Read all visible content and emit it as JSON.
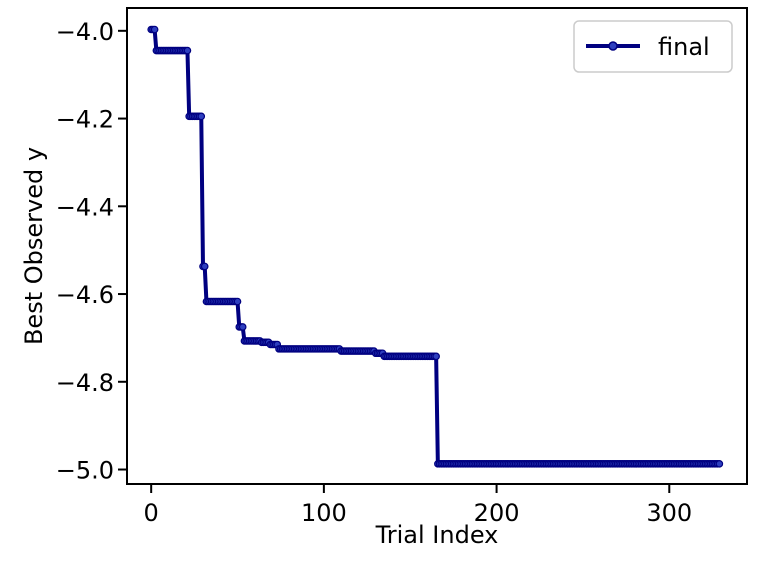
{
  "chart_data": {
    "type": "line",
    "xlabel": "Trial Index",
    "ylabel": "Best Observed y",
    "xlim": [
      -14,
      345
    ],
    "ylim": [
      -5.033,
      -3.948
    ],
    "xticks": [
      0,
      100,
      200,
      300
    ],
    "xtick_labels": [
      "0",
      "100",
      "200",
      "300"
    ],
    "yticks": [
      -4.0,
      -4.2,
      -4.4,
      -4.6,
      -4.8,
      -5.0
    ],
    "ytick_labels": [
      "−4.0",
      "−4.2",
      "−4.4",
      "−4.6",
      "−4.8",
      "−5.0"
    ],
    "legend_position": "top-right",
    "color": "#000080",
    "series": [
      {
        "name": "final",
        "steps": [
          [
            0,
            -3.997
          ],
          [
            3,
            -4.045
          ],
          [
            22,
            -4.195
          ],
          [
            30,
            -4.537
          ],
          [
            32,
            -4.617
          ],
          [
            51,
            -4.675
          ],
          [
            54,
            -4.707
          ],
          [
            64,
            -4.71
          ],
          [
            69,
            -4.715
          ],
          [
            74,
            -4.725
          ],
          [
            110,
            -4.73
          ],
          [
            130,
            -4.735
          ],
          [
            135,
            -4.742
          ],
          [
            166,
            -4.987
          ]
        ],
        "last_x": 329
      }
    ]
  }
}
